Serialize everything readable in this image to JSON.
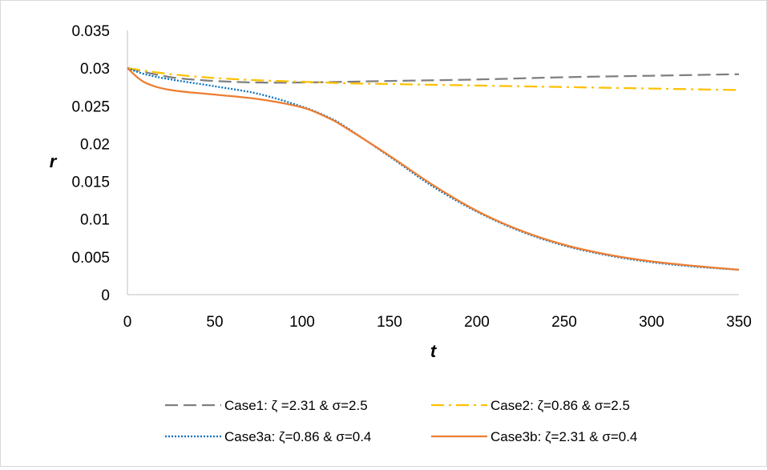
{
  "chart_data": {
    "type": "line",
    "title": "",
    "xlabel": "t",
    "ylabel": "r",
    "xlim": [
      0,
      350
    ],
    "ylim": [
      0,
      0.035
    ],
    "x_ticks": [
      "0",
      "50",
      "100",
      "150",
      "200",
      "250",
      "300",
      "350"
    ],
    "y_ticks": [
      "0",
      "0.005",
      "0.01",
      "0.015",
      "0.02",
      "0.025",
      "0.03",
      "0.035"
    ],
    "grid": false,
    "legend_position": "bottom",
    "series": [
      {
        "name": "Case1: ζ =2.31 & σ=2.5",
        "color": "#7f7f7f",
        "dash": "long-dash",
        "x": [
          0,
          25,
          50,
          75,
          100,
          125,
          150,
          200,
          250,
          300,
          350
        ],
        "y": [
          0.03,
          0.0288,
          0.0283,
          0.0281,
          0.0281,
          0.0282,
          0.0283,
          0.0285,
          0.0288,
          0.029,
          0.0292
        ]
      },
      {
        "name": "Case2: ζ=0.86 & σ=2.5",
        "color": "#ffc000",
        "dash": "dash-dot",
        "x": [
          0,
          25,
          50,
          75,
          100,
          125,
          150,
          200,
          250,
          300,
          350
        ],
        "y": [
          0.03,
          0.0292,
          0.0287,
          0.0284,
          0.0282,
          0.028,
          0.0279,
          0.0277,
          0.0275,
          0.0273,
          0.0271
        ]
      },
      {
        "name": "Case3a: ζ=0.86 & σ=0.4",
        "color": "#0070c0",
        "dash": "dotted",
        "x": [
          0,
          10,
          25,
          50,
          75,
          100,
          115,
          125,
          150,
          175,
          200,
          225,
          250,
          275,
          300,
          325,
          350
        ],
        "y": [
          0.03,
          0.0292,
          0.0285,
          0.0276,
          0.0266,
          0.0249,
          0.0235,
          0.0222,
          0.0183,
          0.0143,
          0.011,
          0.0084,
          0.0065,
          0.0052,
          0.0043,
          0.0037,
          0.0033
        ]
      },
      {
        "name": "Case3b: ζ=2.31 & σ=0.4",
        "color": "#ed7d31",
        "dash": "solid",
        "x": [
          0,
          10,
          25,
          50,
          75,
          100,
          115,
          125,
          150,
          175,
          200,
          225,
          250,
          275,
          300,
          325,
          350
        ],
        "y": [
          0.03,
          0.0281,
          0.0271,
          0.0265,
          0.0259,
          0.0248,
          0.0234,
          0.0221,
          0.0184,
          0.0145,
          0.0111,
          0.0085,
          0.0066,
          0.0053,
          0.0044,
          0.0038,
          0.0033
        ]
      }
    ]
  }
}
